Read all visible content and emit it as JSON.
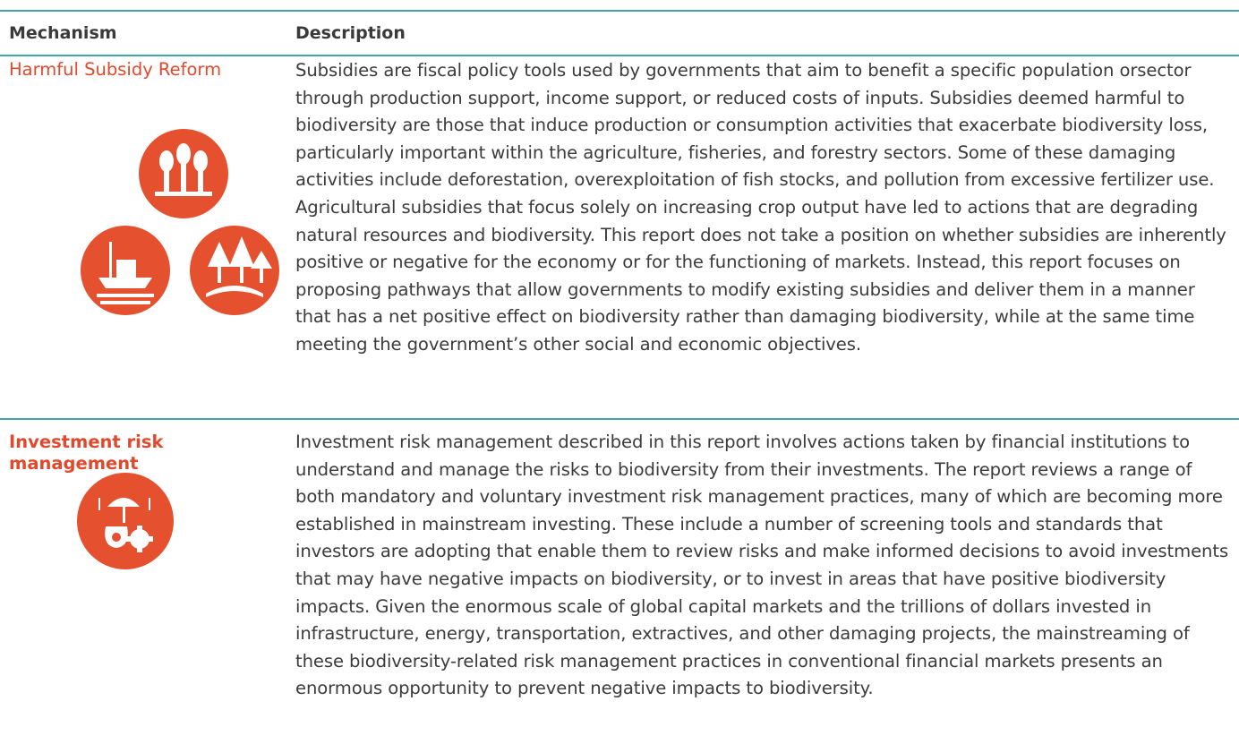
{
  "table": {
    "header": [
      "Mechanism",
      "Description"
    ],
    "rows": [
      [
        "Harmful Subsidy Reform",
        "Subsidies are fiscal policy tools used by governments that aim to benefit a specific population orsector through production support, income support, or reduced costs of inputs. Subsidies deemed harmful to biodiversity are those that induce production or consumption activities that exacerbate biodiversity loss, particularly important within the agriculture, fisheries, and forestry sectors. Some of these damaging activities include deforestation, overexploitation of fish stocks, and pollution from excessive fertilizer use. Agricultural subsidies that focus solely on increasing crop output have led to actions that are degrading natural resources and biodiversity. This report does not take a position on whether subsidies are inherently positive or negative for the economy or for the functioning of markets. Instead, this report focuses on proposing pathways that allow governments to modify existing subsidies and deliver them in a manner that has a net positive effect on biodiversity rather than damaging biodiversity, while at the same time meeting the government’s other social and economic objectives."
      ],
      [
        "Investment risk management",
        "Investment risk management described in this report involves actions taken by financial institutions to understand and manage the risks to biodiversity from their investments. The report reviews a range of both mandatory and voluntary investment risk management practices, many of which are becoming more established in mainstream investing. These include a number of screening tools and standards that investors are adopting that enable them to review risks and make informed decisions to avoid investments that may have negative impacts on biodiversity, or to invest in areas that have positive biodiversity impacts. Given the enormous scale of global capital markets and the trillions of dollars invested in infrastructure, energy, transportation, extractives, and other damaging projects, the mainstreaming of these biodiversity-related risk management practices in conventional financial markets presents an enormous opportunity to prevent negative impacts to biodiversity."
      ]
    ]
  }
}
